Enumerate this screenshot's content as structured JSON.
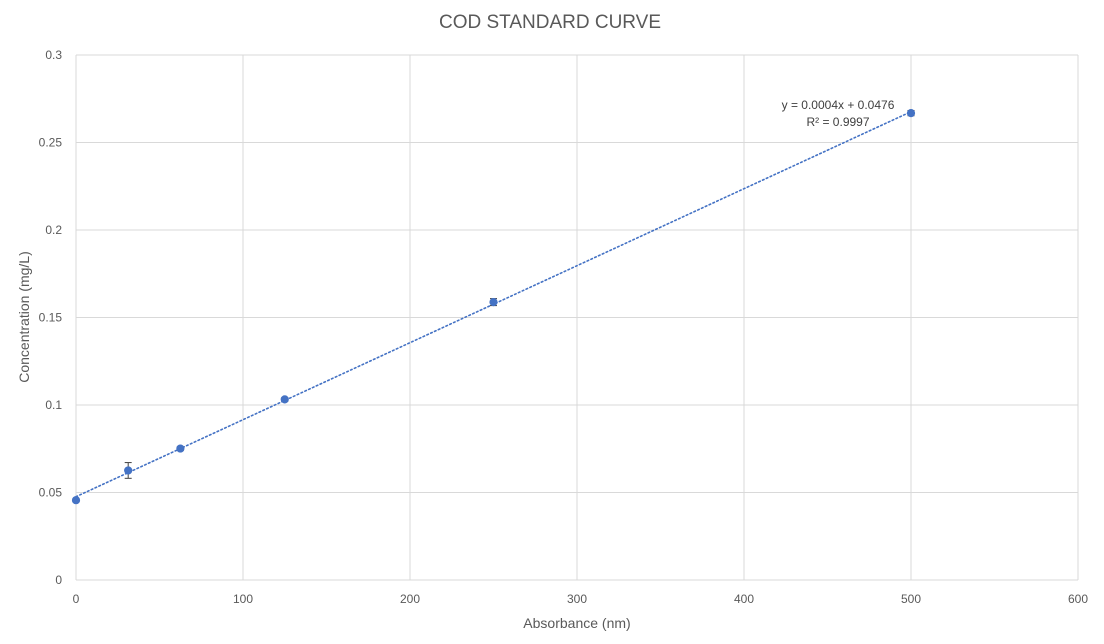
{
  "chart_data": {
    "type": "scatter",
    "title": "COD STANDARD CURVE",
    "xlabel": "Absorbance (nm)",
    "ylabel": "Concentration (mg/L)",
    "xlim": [
      0,
      600
    ],
    "ylim": [
      0,
      0.3
    ],
    "x_ticks": [
      "0",
      "100",
      "200",
      "300",
      "400",
      "500",
      "600"
    ],
    "y_ticks": [
      "0",
      "0.05",
      "0.1",
      "0.15",
      "0.2",
      "0.25",
      "0.3"
    ],
    "grid": true,
    "legend": "none",
    "series": [
      {
        "x": [
          0,
          31.25,
          62.5,
          125,
          250,
          500
        ],
        "y": [
          0.0456,
          0.0626,
          0.0751,
          0.1032,
          0.1588,
          0.2668
        ],
        "error_y": [
          0.0008,
          0.0045,
          0.001,
          0.001,
          0.002,
          0.0015
        ],
        "color": "#4472c4"
      }
    ],
    "trendline": {
      "type": "linear",
      "slope": 0.0004,
      "intercept": 0.0476,
      "display_slope": 0.00044,
      "style": "dotted",
      "color": "#4472c4",
      "equation": "y = 0.0004x + 0.0476",
      "r_squared": "R² = 0.9997"
    },
    "colors": {
      "grid": "#d9d9d9",
      "text": "#595959",
      "marker": "#4472c4"
    }
  }
}
